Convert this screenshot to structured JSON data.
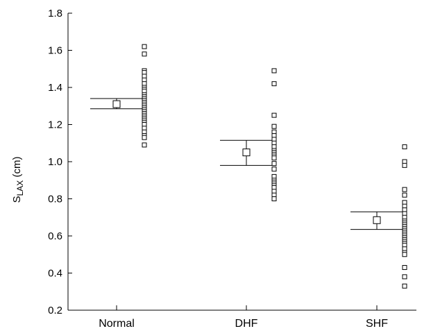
{
  "chart_data": {
    "type": "scatter",
    "title": "",
    "xlabel": "",
    "ylabel": {
      "main": "S",
      "sub": "LAX",
      "unit": " (cm)"
    },
    "ylim": [
      0.2,
      1.8
    ],
    "yticks": [
      0.2,
      0.4,
      0.6,
      0.8,
      1.0,
      1.2,
      1.4,
      1.6,
      1.8
    ],
    "ytick_labels": [
      "0.2",
      "0.4",
      "0.6",
      "0.8",
      "1.0",
      "1.2",
      "1.4",
      "1.6",
      "1.8"
    ],
    "categories": [
      "Normal",
      "DHF",
      "SHF"
    ],
    "groups": [
      {
        "category": "Normal",
        "mean": 1.31,
        "ci": [
          1.285,
          1.34
        ],
        "points": [
          1.62,
          1.58,
          1.49,
          1.48,
          1.46,
          1.44,
          1.42,
          1.4,
          1.39,
          1.38,
          1.36,
          1.35,
          1.34,
          1.33,
          1.32,
          1.31,
          1.3,
          1.29,
          1.28,
          1.27,
          1.26,
          1.25,
          1.24,
          1.23,
          1.22,
          1.21,
          1.2,
          1.18,
          1.16,
          1.14,
          1.13,
          1.09
        ]
      },
      {
        "category": "DHF",
        "mean": 1.05,
        "ci": [
          0.98,
          1.115
        ],
        "points": [
          1.49,
          1.42,
          1.25,
          1.19,
          1.16,
          1.14,
          1.12,
          1.1,
          1.08,
          1.06,
          1.05,
          1.04,
          1.03,
          1.02,
          0.99,
          0.96,
          0.92,
          0.9,
          0.89,
          0.88,
          0.87,
          0.86,
          0.84,
          0.82,
          0.8
        ]
      },
      {
        "category": "SHF",
        "mean": 0.685,
        "ci": [
          0.635,
          0.73
        ],
        "points": [
          1.08,
          1.0,
          0.98,
          0.85,
          0.82,
          0.78,
          0.76,
          0.74,
          0.72,
          0.7,
          0.68,
          0.67,
          0.66,
          0.65,
          0.64,
          0.63,
          0.62,
          0.61,
          0.6,
          0.59,
          0.58,
          0.57,
          0.56,
          0.55,
          0.53,
          0.51,
          0.5,
          0.43,
          0.38,
          0.33
        ]
      }
    ],
    "grid": false,
    "legend": "none"
  }
}
